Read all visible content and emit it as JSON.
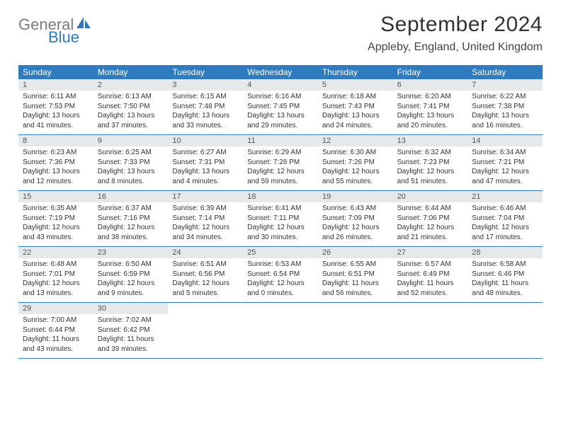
{
  "logo": {
    "top": "General",
    "bottom": "Blue"
  },
  "title": "September 2024",
  "location": "Appleby, England, United Kingdom",
  "header_bg": "#2e7bbf",
  "day_names": [
    "Sunday",
    "Monday",
    "Tuesday",
    "Wednesday",
    "Thursday",
    "Friday",
    "Saturday"
  ],
  "weeks": [
    [
      {
        "n": "1",
        "sr": "6:11 AM",
        "ss": "7:53 PM",
        "dl": "13 hours and 41 minutes."
      },
      {
        "n": "2",
        "sr": "6:13 AM",
        "ss": "7:50 PM",
        "dl": "13 hours and 37 minutes."
      },
      {
        "n": "3",
        "sr": "6:15 AM",
        "ss": "7:48 PM",
        "dl": "13 hours and 33 minutes."
      },
      {
        "n": "4",
        "sr": "6:16 AM",
        "ss": "7:45 PM",
        "dl": "13 hours and 29 minutes."
      },
      {
        "n": "5",
        "sr": "6:18 AM",
        "ss": "7:43 PM",
        "dl": "13 hours and 24 minutes."
      },
      {
        "n": "6",
        "sr": "6:20 AM",
        "ss": "7:41 PM",
        "dl": "13 hours and 20 minutes."
      },
      {
        "n": "7",
        "sr": "6:22 AM",
        "ss": "7:38 PM",
        "dl": "13 hours and 16 minutes."
      }
    ],
    [
      {
        "n": "8",
        "sr": "6:23 AM",
        "ss": "7:36 PM",
        "dl": "13 hours and 12 minutes."
      },
      {
        "n": "9",
        "sr": "6:25 AM",
        "ss": "7:33 PM",
        "dl": "13 hours and 8 minutes."
      },
      {
        "n": "10",
        "sr": "6:27 AM",
        "ss": "7:31 PM",
        "dl": "13 hours and 4 minutes."
      },
      {
        "n": "11",
        "sr": "6:29 AM",
        "ss": "7:28 PM",
        "dl": "12 hours and 59 minutes."
      },
      {
        "n": "12",
        "sr": "6:30 AM",
        "ss": "7:26 PM",
        "dl": "12 hours and 55 minutes."
      },
      {
        "n": "13",
        "sr": "6:32 AM",
        "ss": "7:23 PM",
        "dl": "12 hours and 51 minutes."
      },
      {
        "n": "14",
        "sr": "6:34 AM",
        "ss": "7:21 PM",
        "dl": "12 hours and 47 minutes."
      }
    ],
    [
      {
        "n": "15",
        "sr": "6:35 AM",
        "ss": "7:19 PM",
        "dl": "12 hours and 43 minutes."
      },
      {
        "n": "16",
        "sr": "6:37 AM",
        "ss": "7:16 PM",
        "dl": "12 hours and 38 minutes."
      },
      {
        "n": "17",
        "sr": "6:39 AM",
        "ss": "7:14 PM",
        "dl": "12 hours and 34 minutes."
      },
      {
        "n": "18",
        "sr": "6:41 AM",
        "ss": "7:11 PM",
        "dl": "12 hours and 30 minutes."
      },
      {
        "n": "19",
        "sr": "6:43 AM",
        "ss": "7:09 PM",
        "dl": "12 hours and 26 minutes."
      },
      {
        "n": "20",
        "sr": "6:44 AM",
        "ss": "7:06 PM",
        "dl": "12 hours and 21 minutes."
      },
      {
        "n": "21",
        "sr": "6:46 AM",
        "ss": "7:04 PM",
        "dl": "12 hours and 17 minutes."
      }
    ],
    [
      {
        "n": "22",
        "sr": "6:48 AM",
        "ss": "7:01 PM",
        "dl": "12 hours and 13 minutes."
      },
      {
        "n": "23",
        "sr": "6:50 AM",
        "ss": "6:59 PM",
        "dl": "12 hours and 9 minutes."
      },
      {
        "n": "24",
        "sr": "6:51 AM",
        "ss": "6:56 PM",
        "dl": "12 hours and 5 minutes."
      },
      {
        "n": "25",
        "sr": "6:53 AM",
        "ss": "6:54 PM",
        "dl": "12 hours and 0 minutes."
      },
      {
        "n": "26",
        "sr": "6:55 AM",
        "ss": "6:51 PM",
        "dl": "11 hours and 56 minutes."
      },
      {
        "n": "27",
        "sr": "6:57 AM",
        "ss": "6:49 PM",
        "dl": "11 hours and 52 minutes."
      },
      {
        "n": "28",
        "sr": "6:58 AM",
        "ss": "6:46 PM",
        "dl": "11 hours and 48 minutes."
      }
    ],
    [
      {
        "n": "29",
        "sr": "7:00 AM",
        "ss": "6:44 PM",
        "dl": "11 hours and 43 minutes."
      },
      {
        "n": "30",
        "sr": "7:02 AM",
        "ss": "6:42 PM",
        "dl": "11 hours and 39 minutes."
      },
      null,
      null,
      null,
      null,
      null
    ]
  ],
  "labels": {
    "sunrise": "Sunrise:",
    "sunset": "Sunset:",
    "daylight": "Daylight:"
  }
}
